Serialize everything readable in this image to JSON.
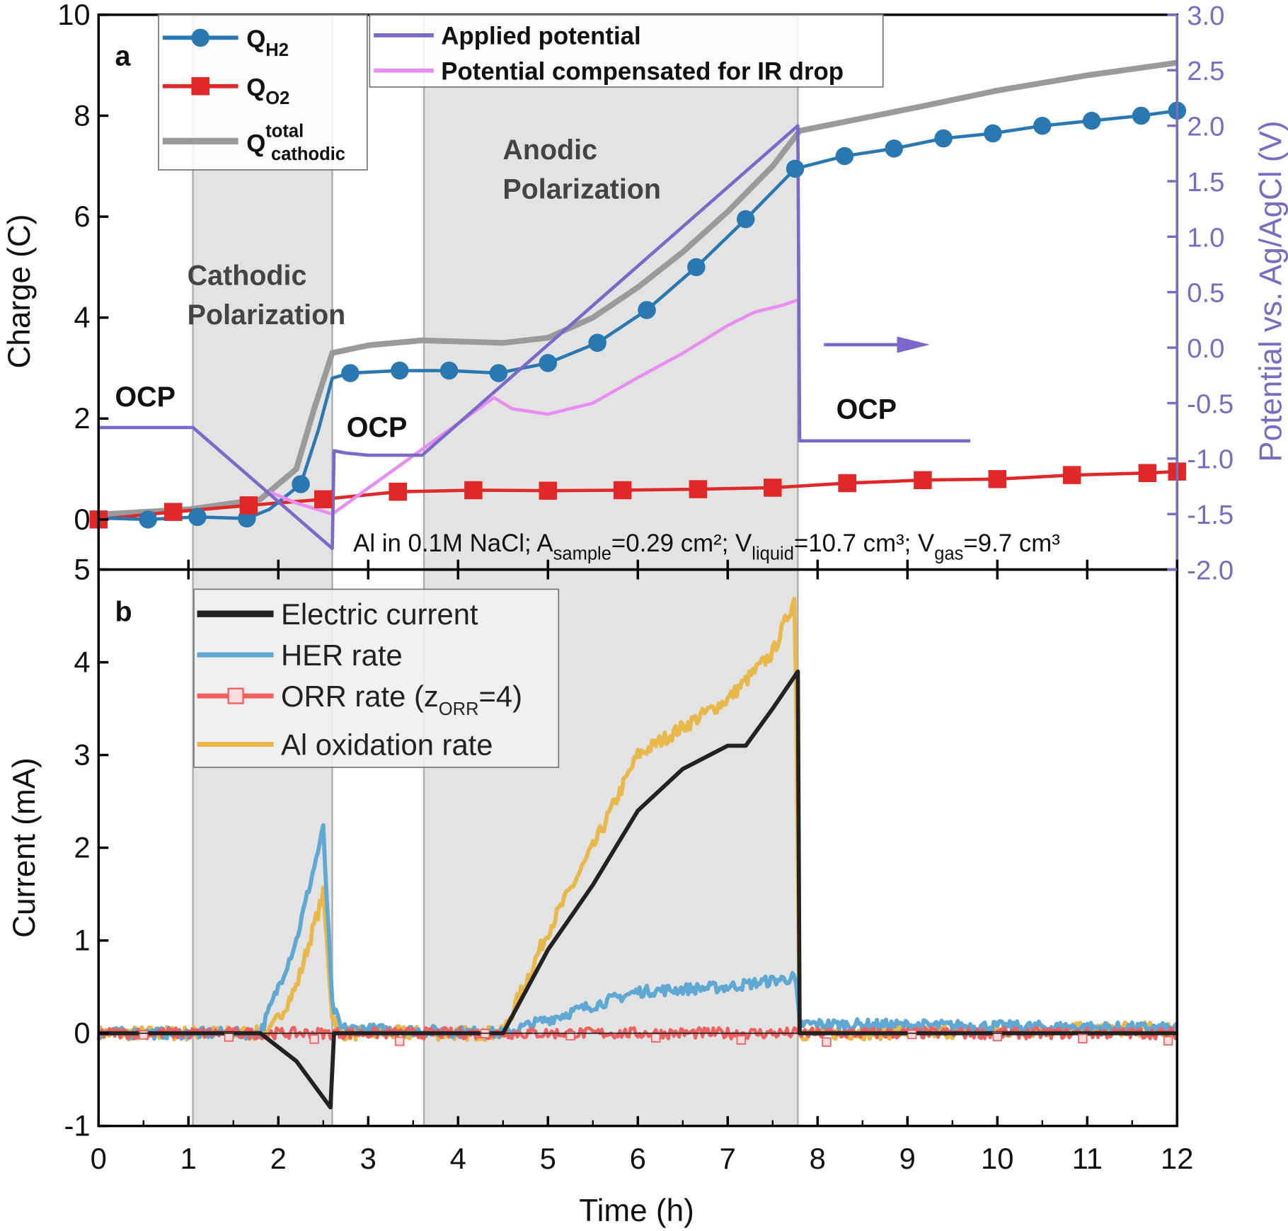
{
  "chart_data": [
    {
      "panel_label": "a",
      "type": "line",
      "xlabel": "Time (h)",
      "ylabel": "Charge (C)",
      "ylabel_right": "Potential vs. Ag/AgCl (V)",
      "xlim": [
        0,
        12
      ],
      "ylim": [
        0,
        10
      ],
      "ylim_right": [
        -2.0,
        3.0
      ],
      "xticks": [
        "0",
        "1",
        "2",
        "3",
        "4",
        "5",
        "6",
        "7",
        "8",
        "9",
        "10",
        "11",
        "12"
      ],
      "yticks": [
        "0",
        "2",
        "4",
        "6",
        "8",
        "10"
      ],
      "yticks_right": [
        "-2.0",
        "-1.5",
        "-1.0",
        "-0.5",
        "0.0",
        "0.5",
        "1.0",
        "1.5",
        "2.0",
        "2.5",
        "3.0"
      ],
      "shaded_regions_h": [
        [
          1.05,
          2.6
        ],
        [
          3.62,
          7.78
        ]
      ],
      "series": [
        {
          "name": "Q",
          "sub": "H2",
          "axis": "left",
          "color": "#2a78b2",
          "marker": "circle",
          "x": [
            0,
            0.55,
            1.1,
            1.65,
            1.9,
            2.25,
            2.45,
            2.6,
            2.8,
            3.35,
            3.9,
            4.45,
            5.0,
            5.55,
            6.1,
            6.65,
            7.2,
            7.75,
            8.3,
            8.85,
            9.4,
            9.95,
            10.5,
            11.05,
            11.6,
            12
          ],
          "y": [
            0.03,
            0,
            0.05,
            0.02,
            0.2,
            0.7,
            1.8,
            2.8,
            2.9,
            2.95,
            2.95,
            2.9,
            3.1,
            3.5,
            4.15,
            5.0,
            5.95,
            6.95,
            7.2,
            7.35,
            7.55,
            7.65,
            7.8,
            7.9,
            8.0,
            8.1
          ],
          "marker_x": [
            0.55,
            1.1,
            1.65,
            2.25,
            2.8,
            3.35,
            3.9,
            4.45,
            5.0,
            5.55,
            6.1,
            6.65,
            7.2,
            7.75,
            8.3,
            8.85,
            9.4,
            9.95,
            10.5,
            11.05,
            11.6,
            12
          ]
        },
        {
          "name": "Q",
          "sub": "O2",
          "axis": "left",
          "color": "#e02828",
          "marker": "square",
          "x": [
            0,
            0.83,
            1.67,
            2.5,
            3.33,
            4.17,
            5.0,
            5.83,
            6.67,
            7.5,
            8.33,
            9.17,
            10,
            10.83,
            11.67,
            12
          ],
          "y": [
            0,
            0.15,
            0.28,
            0.4,
            0.55,
            0.58,
            0.57,
            0.58,
            0.6,
            0.63,
            0.72,
            0.78,
            0.8,
            0.88,
            0.92,
            0.95
          ]
        },
        {
          "name": "Q",
          "sup": "total",
          "sub": "cathodic",
          "axis": "left",
          "color": "#9a9a9a",
          "marker": "none",
          "x": [
            0,
            1,
            1.8,
            2.2,
            2.4,
            2.6,
            3,
            3.6,
            4.5,
            5,
            5.5,
            6,
            6.5,
            7,
            7.5,
            7.8,
            8.5,
            9.2,
            10,
            11,
            12
          ],
          "y": [
            0.1,
            0.2,
            0.4,
            1.0,
            2.2,
            3.3,
            3.45,
            3.55,
            3.5,
            3.6,
            4.0,
            4.6,
            5.3,
            6.1,
            7.0,
            7.7,
            7.95,
            8.2,
            8.5,
            8.8,
            9.05
          ]
        },
        {
          "name": "Applied potential",
          "axis": "right",
          "color": "#7b68c8",
          "marker": "none",
          "x": [
            0,
            1.05,
            2.6,
            2.62,
            2.75,
            3.0,
            3.6,
            7.78,
            7.8,
            9.7
          ],
          "y": [
            -0.72,
            -0.72,
            -1.81,
            -0.93,
            -0.95,
            -0.97,
            -0.97,
            2.0,
            -0.84,
            -0.84
          ]
        },
        {
          "name": "Potential compensated for IR drop",
          "axis": "right",
          "color": "#e88ef0",
          "marker": "none",
          "x": [
            1.9,
            2.2,
            2.6,
            4.4,
            4.6,
            5.0,
            5.5,
            6.0,
            6.5,
            7.0,
            7.3,
            7.6,
            7.78
          ],
          "y": [
            -1.3,
            -1.4,
            -1.5,
            -0.45,
            -0.55,
            -0.6,
            -0.5,
            -0.27,
            -0.05,
            0.2,
            0.32,
            0.38,
            0.43
          ]
        }
      ],
      "legend_placement": "top-left",
      "annotations": {
        "panel": "a",
        "ocp": "OCP",
        "cathodic_1": "Cathodic",
        "cathodic_2": "Polarization",
        "anodic_1": "Anodic",
        "anodic_2": "Polarization",
        "sample_1": "Al in 0.1M NaCl; A",
        "sample_sub1": "sample",
        "sample_2": "=0.29 cm²; V",
        "sample_sub2": "liquid",
        "sample_3": "=10.7 cm³; V",
        "sample_sub3": "gas",
        "sample_4": "=9.7 cm³"
      }
    },
    {
      "panel_label": "b",
      "type": "line",
      "xlabel": "Time (h)",
      "ylabel": "Current (mA)",
      "xlim": [
        0,
        12
      ],
      "ylim": [
        -1,
        5
      ],
      "yticks": [
        "-1",
        "0",
        "1",
        "2",
        "3",
        "4",
        "5"
      ],
      "series": [
        {
          "name": "Electric current",
          "color": "#222222",
          "x": [
            0,
            1.8,
            2.2,
            2.58,
            2.62,
            4.5,
            5,
            5.5,
            6,
            6.5,
            7,
            7.2,
            7.5,
            7.78,
            7.8,
            12
          ],
          "y": [
            0,
            0,
            -0.3,
            -0.8,
            0,
            0,
            0.9,
            1.6,
            2.4,
            2.85,
            3.1,
            3.1,
            3.5,
            3.9,
            0,
            0
          ]
        },
        {
          "name": "HER rate",
          "color": "#5fa8d3",
          "x": [
            0,
            1.8,
            2.2,
            2.5,
            2.6,
            2.7,
            4.5,
            5,
            6,
            7,
            7.75,
            7.8,
            12
          ],
          "y": [
            0,
            0,
            1.0,
            2.2,
            0.3,
            0.05,
            0,
            0.15,
            0.45,
            0.5,
            0.6,
            0.1,
            0.05
          ]
        },
        {
          "name": "ORR rate (z",
          "sub": "ORR",
          "name_end": "=4)",
          "color": "#f06060",
          "x": [
            0,
            12
          ],
          "y": [
            0,
            0
          ]
        },
        {
          "name": "Al oxidation rate",
          "color": "#e8b84a",
          "x": [
            0,
            1.9,
            2.2,
            2.5,
            2.6,
            2.7,
            4.5,
            5,
            5.5,
            6,
            7,
            7.5,
            7.75,
            7.8,
            12
          ],
          "y": [
            0,
            0,
            0.5,
            1.5,
            0.2,
            0,
            0,
            1.1,
            2.0,
            3.0,
            3.6,
            4.1,
            4.7,
            0,
            0.05
          ]
        }
      ],
      "legend_placement": "top-left",
      "annotations": {
        "panel": "b"
      }
    }
  ]
}
